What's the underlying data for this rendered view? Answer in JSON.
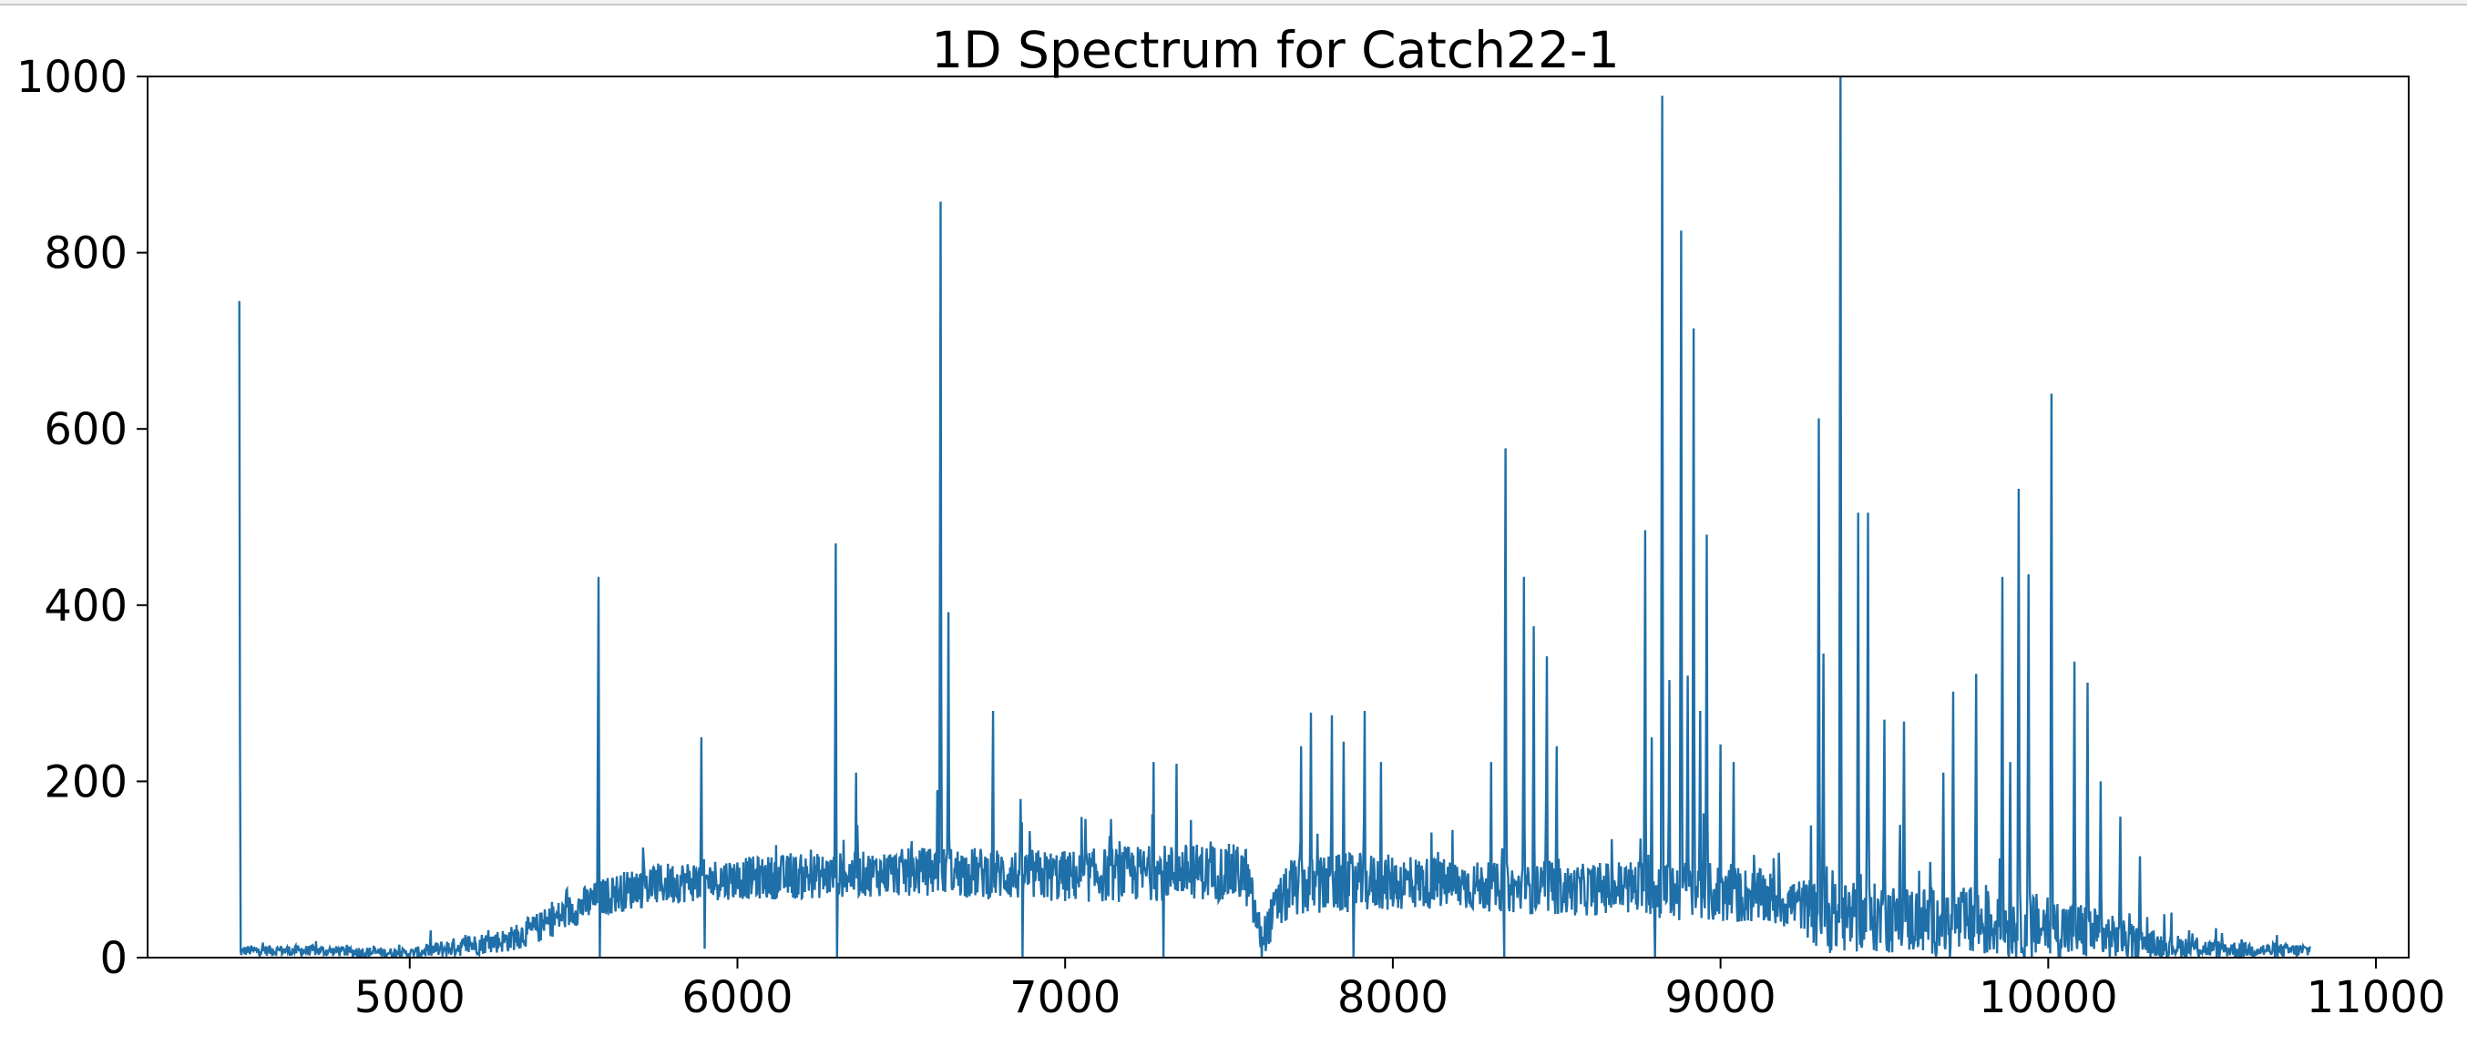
{
  "chart_data": {
    "type": "line",
    "title": "1D Spectrum for Catch22-1",
    "xlabel": "",
    "ylabel": "",
    "xlim": [
      4200,
      11100
    ],
    "ylim": [
      0,
      1000
    ],
    "x_ticks": [
      5000,
      6000,
      7000,
      8000,
      9000,
      10000,
      11000
    ],
    "y_ticks": [
      0,
      200,
      400,
      600,
      800,
      1000
    ],
    "x_tick_labels": [
      "5000",
      "6000",
      "7000",
      "8000",
      "9000",
      "10000",
      "11000"
    ],
    "y_tick_labels": [
      "0",
      "200",
      "400",
      "600",
      "800",
      "1000"
    ],
    "grid": false,
    "series_color": "#1f6fa8",
    "continuum": {
      "x": [
        4480,
        4500,
        4700,
        4900,
        5000,
        5100,
        5200,
        5300,
        5400,
        5500,
        5600,
        5700,
        5800,
        5900,
        6000,
        6200,
        6400,
        6600,
        6800,
        7000,
        7200,
        7400,
        7550,
        7600,
        7650,
        7700,
        7900,
        8100,
        8300,
        8500,
        8700,
        8900,
        9100,
        9250,
        9300,
        9500,
        9700,
        9900,
        10100,
        10300,
        10500,
        10700,
        10800
      ],
      "y": [
        5,
        8,
        8,
        6,
        5,
        10,
        15,
        20,
        35,
        55,
        70,
        80,
        85,
        88,
        90,
        92,
        95,
        98,
        95,
        92,
        95,
        98,
        95,
        20,
        60,
        80,
        85,
        85,
        80,
        75,
        80,
        75,
        70,
        60,
        45,
        45,
        40,
        38,
        30,
        15,
        10,
        8,
        8
      ],
      "noise_amplitude": [
        4,
        6,
        6,
        6,
        5,
        10,
        12,
        14,
        18,
        20,
        22,
        24,
        24,
        24,
        24,
        26,
        26,
        28,
        30,
        30,
        32,
        32,
        34,
        20,
        30,
        34,
        34,
        30,
        28,
        28,
        32,
        36,
        32,
        30,
        40,
        40,
        40,
        40,
        34,
        16,
        10,
        8,
        8
      ]
    },
    "peaks": {
      "x": [
        4478,
        5577,
        5890,
        6300,
        6363,
        6610,
        6620,
        6644,
        6780,
        6865,
        7270,
        7340,
        7720,
        7750,
        7815,
        7850,
        7915,
        7965,
        8300,
        8345,
        8400,
        8430,
        8470,
        8500,
        8770,
        8790,
        8822,
        8845,
        8880,
        8900,
        8918,
        8938,
        8958,
        9000,
        9040,
        9300,
        9315,
        9366,
        9420,
        9450,
        9500,
        9560,
        9680,
        9710,
        9780,
        9860,
        9885,
        9910,
        9940,
        10010,
        10080,
        10120,
        10160,
        10220,
        10280
      ],
      "y": [
        745,
        432,
        250,
        470,
        210,
        190,
        858,
        392,
        280,
        180,
        222,
        220,
        240,
        278,
        275,
        245,
        280,
        222,
        222,
        578,
        432,
        376,
        342,
        240,
        485,
        250,
        978,
        315,
        825,
        320,
        714,
        280,
        480,
        242,
        222,
        612,
        345,
        1000,
        505,
        505,
        270,
        268,
        210,
        302,
        322,
        432,
        222,
        532,
        435,
        640,
        336,
        312,
        200,
        160,
        115
      ]
    },
    "dips": {
      "x": [
        5580,
        5900,
        6305,
        6870,
        7300,
        7600,
        7880,
        8340,
        8800,
        9300,
        9700,
        9950
      ],
      "y": [
        0,
        10,
        0,
        0,
        0,
        0,
        0,
        0,
        0,
        0,
        0,
        0
      ]
    }
  }
}
